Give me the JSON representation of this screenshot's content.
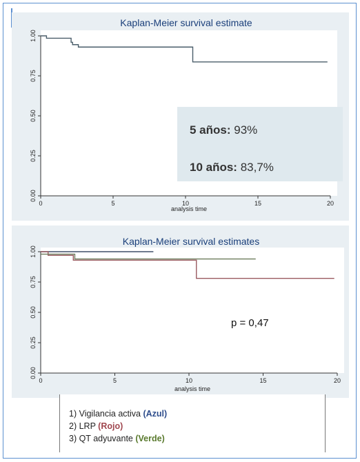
{
  "chart_data": [
    {
      "type": "line",
      "title": "Kaplan-Meier survival estimate",
      "xlabel": "analysis time",
      "ylabel": "",
      "xlim": [
        0,
        20
      ],
      "ylim": [
        0,
        1
      ],
      "x_ticks": [
        "0",
        "5",
        "10",
        "15",
        "20"
      ],
      "y_ticks": [
        "0.00",
        "0.25",
        "0.50",
        "0.75",
        "1.00"
      ],
      "grid": false,
      "series": [
        {
          "color": "#4a5d6a",
          "step": true,
          "x": [
            0,
            0.3,
            0.4,
            1.5,
            2.1,
            2.2,
            2.6,
            10.5,
            19.8
          ],
          "y": [
            1.0,
            1.0,
            0.985,
            0.985,
            0.96,
            0.945,
            0.93,
            0.837,
            0.837
          ]
        }
      ],
      "annotations": [
        {
          "bold": "5 años:",
          "text": " 93%"
        },
        {
          "bold": "10 años:",
          "text": " 83,7%"
        }
      ]
    },
    {
      "type": "line",
      "title": "Kaplan-Meier survival estimates",
      "xlabel": "analysis time",
      "ylabel": "",
      "xlim": [
        0,
        20
      ],
      "ylim": [
        0,
        1
      ],
      "x_ticks": [
        "0",
        "5",
        "10",
        "15",
        "20"
      ],
      "y_ticks": [
        "0.00",
        "0.25",
        "0.50",
        "0.75",
        "1.00"
      ],
      "grid": false,
      "series": [
        {
          "color": "#3f4f68",
          "step": true,
          "x": [
            0,
            7.6
          ],
          "y": [
            1.0,
            1.0
          ]
        },
        {
          "color": "#9a5a60",
          "step": true,
          "x": [
            0,
            0.5,
            2.2,
            10.5,
            19.8
          ],
          "y": [
            1.0,
            0.97,
            0.93,
            0.78,
            0.78
          ]
        },
        {
          "color": "#6b7a5a",
          "step": true,
          "x": [
            0,
            2.0,
            2.3,
            14.5
          ],
          "y": [
            0.98,
            0.98,
            0.94,
            0.94
          ]
        }
      ],
      "annotations": [
        {
          "text": "p = 0,47"
        }
      ]
    }
  ],
  "legend": {
    "items": [
      {
        "prefix": "1) Vigilancia activa ",
        "color_word": "(Azul)"
      },
      {
        "prefix": "2) LRP ",
        "color_word": "(Rojo)"
      },
      {
        "prefix": "3) QT adyuvante ",
        "color_word": "(Verde)"
      }
    ]
  }
}
